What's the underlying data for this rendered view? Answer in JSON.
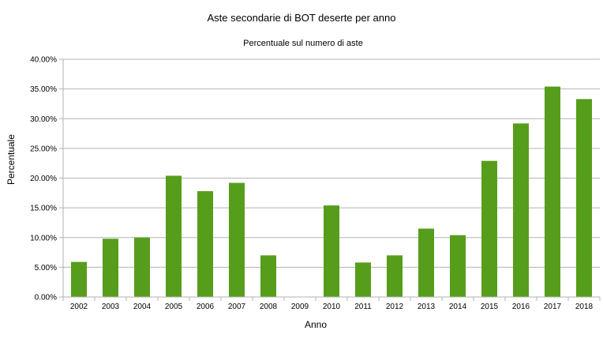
{
  "chart_data": {
    "type": "bar",
    "title": "Aste secondarie di BOT deserte per anno",
    "subtitle": "Percentuale sul numero di aste",
    "xlabel": "Anno",
    "ylabel": "Percentuale",
    "categories": [
      "2002",
      "2003",
      "2004",
      "2005",
      "2006",
      "2007",
      "2008",
      "2009",
      "2010",
      "2011",
      "2012",
      "2013",
      "2014",
      "2015",
      "2016",
      "2017",
      "2018"
    ],
    "values": [
      5.9,
      9.8,
      10.0,
      20.4,
      17.8,
      19.2,
      7.0,
      0.0,
      15.4,
      5.8,
      7.0,
      11.5,
      10.4,
      22.9,
      29.2,
      35.4,
      33.3
    ],
    "ylim": [
      0,
      40
    ],
    "yticks": [
      "0.00%",
      "5.00%",
      "10.00%",
      "15.00%",
      "20.00%",
      "25.00%",
      "30.00%",
      "35.00%",
      "40.00%"
    ],
    "grid": true,
    "bar_color": "#579d1c",
    "grid_color": "#b3b3b3"
  }
}
